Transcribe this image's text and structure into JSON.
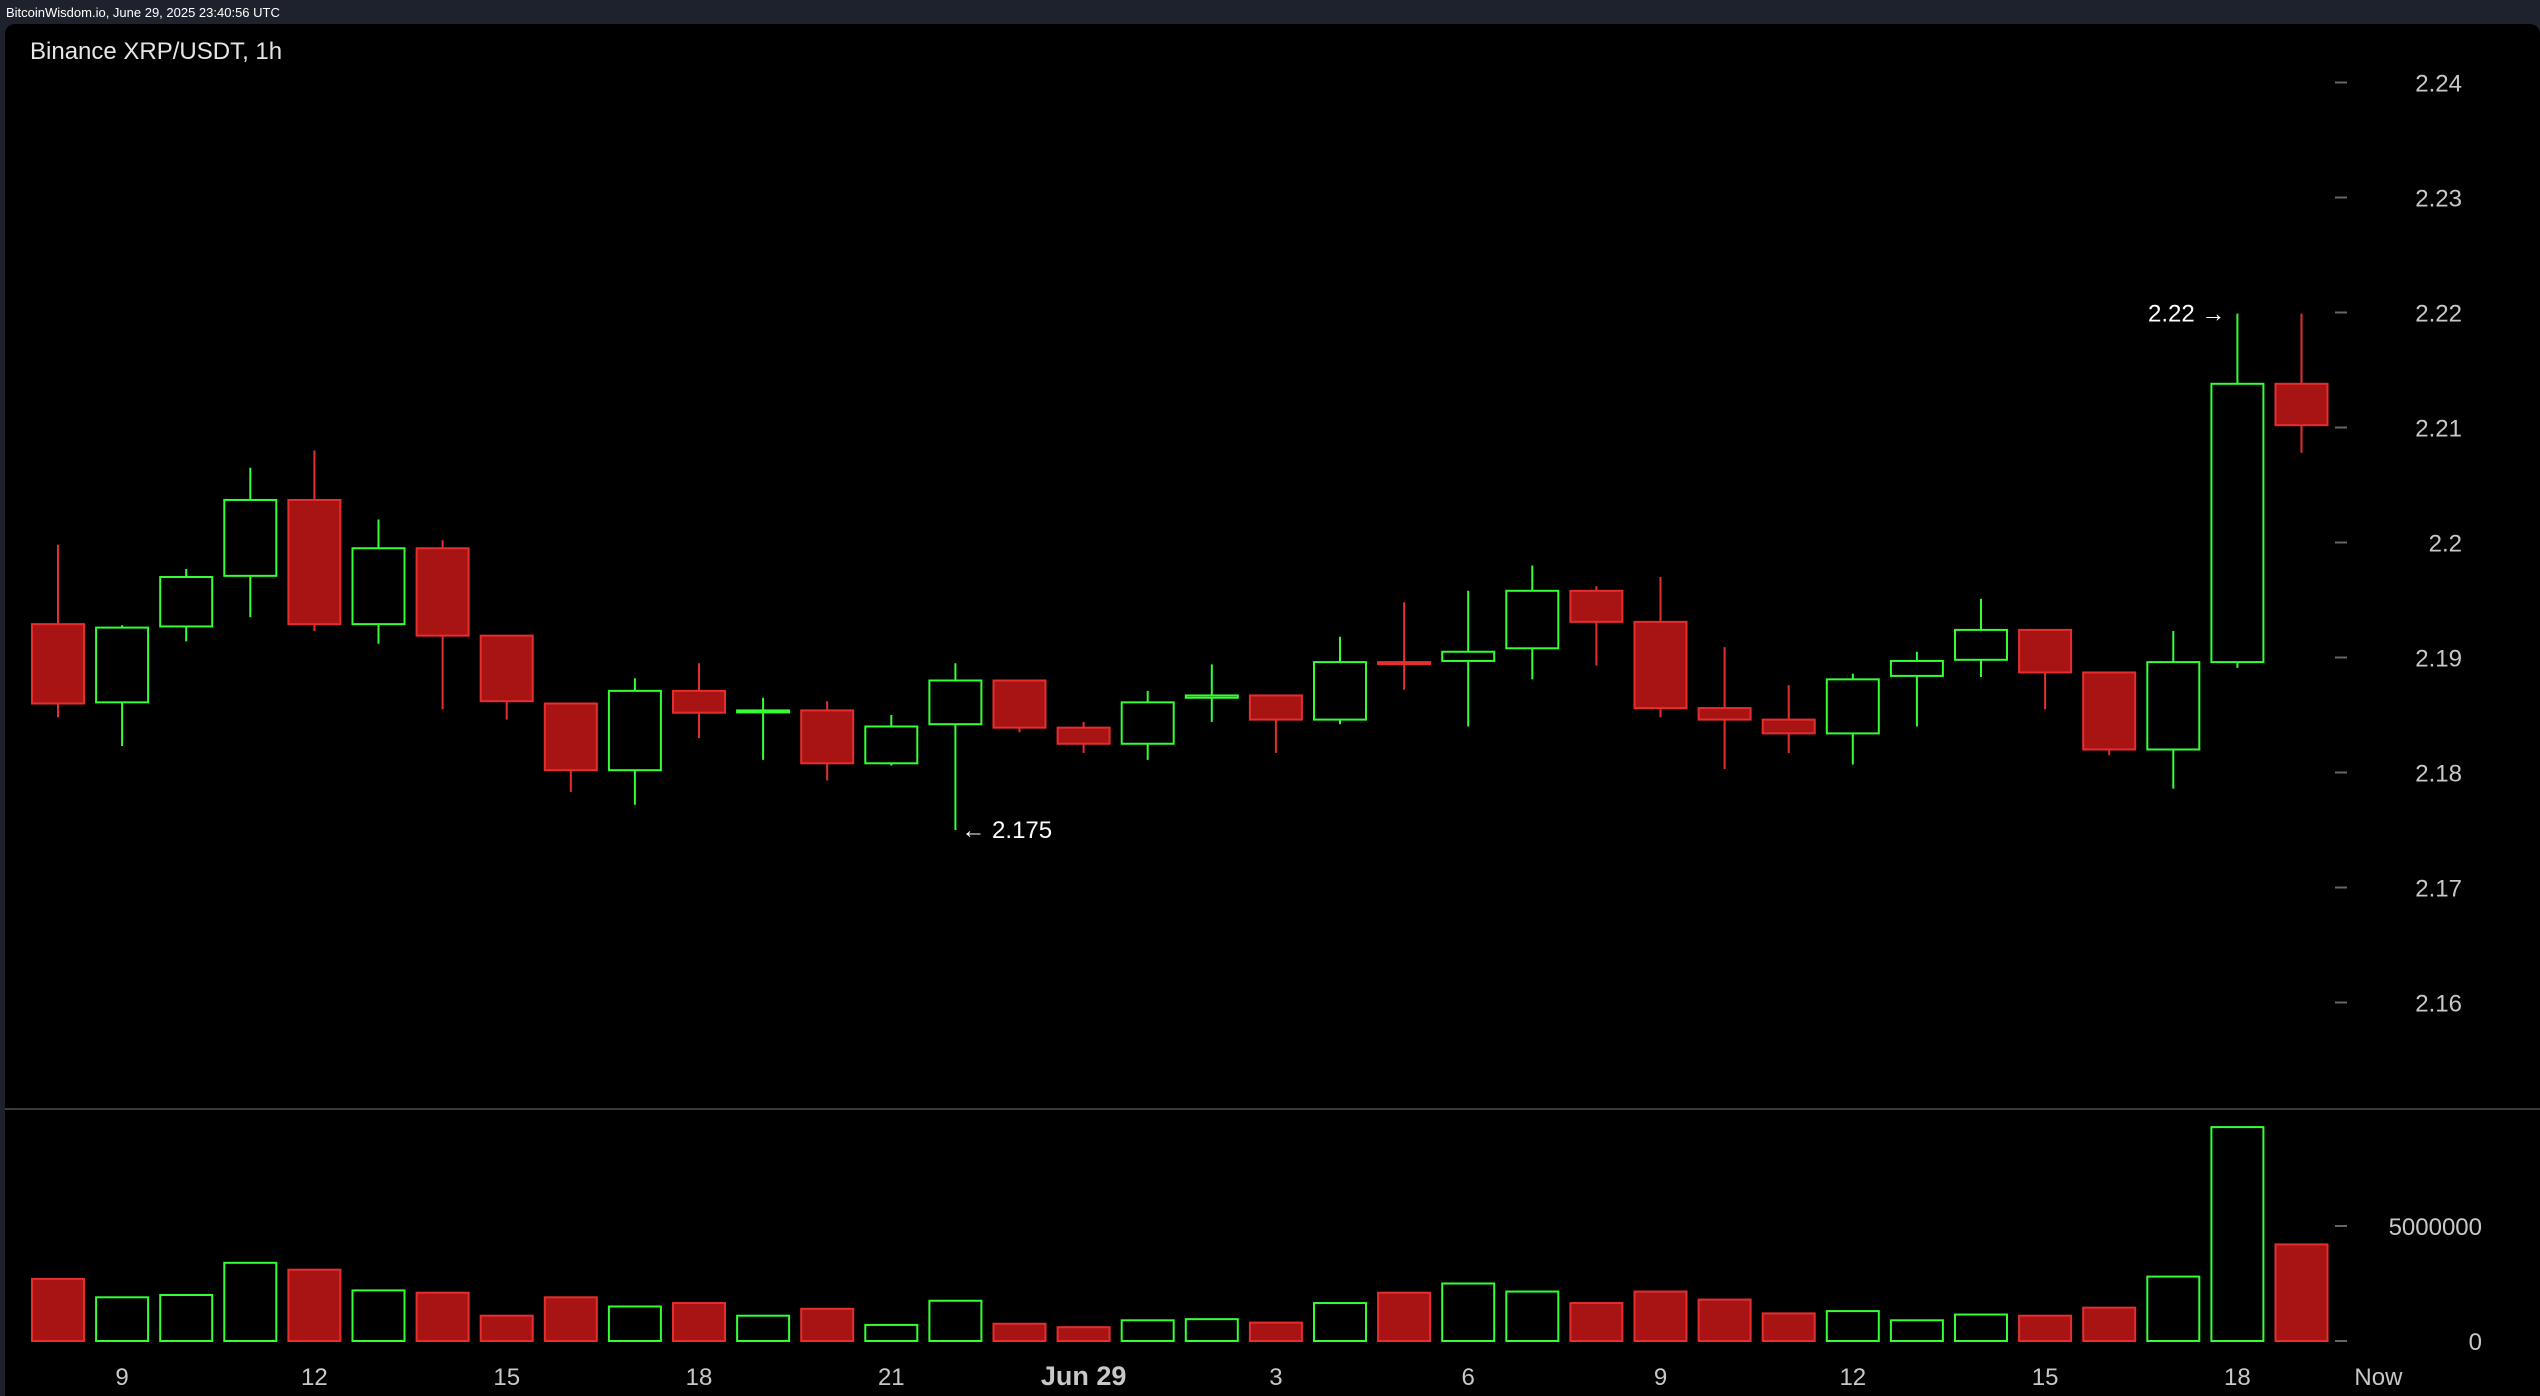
{
  "header": {
    "source_text": "BitcoinWisdom.io, June 29, 2025 23:40:56 UTC"
  },
  "chart_title": "Binance XRP/USDT, 1h",
  "colors": {
    "up": "#33ff33",
    "down": "#e62e2e",
    "down_fill": "#a81414",
    "axis": "#c8c8c8",
    "background": "#000000"
  },
  "chart_data": {
    "type": "candlestick",
    "exchange": "Binance",
    "pair": "XRP/USDT",
    "interval": "1h",
    "x_ticks": [
      {
        "index": 1,
        "label": "9"
      },
      {
        "index": 4,
        "label": "12"
      },
      {
        "index": 7,
        "label": "15"
      },
      {
        "index": 10,
        "label": "18"
      },
      {
        "index": 13,
        "label": "21"
      },
      {
        "index": 16,
        "label": "Jun 29",
        "bold": true
      },
      {
        "index": 19,
        "label": "3"
      },
      {
        "index": 22,
        "label": "6"
      },
      {
        "index": 25,
        "label": "9"
      },
      {
        "index": 28,
        "label": "12"
      },
      {
        "index": 31,
        "label": "15"
      },
      {
        "index": 34,
        "label": "18"
      },
      {
        "index": 36.2,
        "label": "Now"
      }
    ],
    "price_axis": {
      "min": 2.15,
      "max": 2.245,
      "ticks": [
        "2.16",
        "2.17",
        "2.18",
        "2.19",
        "2.2",
        "2.21",
        "2.22",
        "2.23",
        "2.24"
      ]
    },
    "volume_axis": {
      "max": 10000000,
      "ticks": [
        {
          "value": 0,
          "label": "0"
        },
        {
          "value": 5000000,
          "label": "5000000"
        }
      ]
    },
    "candles": [
      {
        "o": 2.1929,
        "h": 2.1998,
        "l": 2.1848,
        "c": 2.186,
        "v": 2700000
      },
      {
        "o": 2.1861,
        "h": 2.1928,
        "l": 2.1823,
        "c": 2.1926,
        "v": 1900000
      },
      {
        "o": 2.1927,
        "h": 2.1977,
        "l": 2.1914,
        "c": 2.197,
        "v": 2000000
      },
      {
        "o": 2.1971,
        "h": 2.2065,
        "l": 2.1935,
        "c": 2.2037,
        "v": 3400000
      },
      {
        "o": 2.2037,
        "h": 2.208,
        "l": 2.1923,
        "c": 2.1929,
        "v": 3100000
      },
      {
        "o": 2.1929,
        "h": 2.202,
        "l": 2.1912,
        "c": 2.1995,
        "v": 2200000
      },
      {
        "o": 2.1995,
        "h": 2.2002,
        "l": 2.1855,
        "c": 2.1919,
        "v": 2100000
      },
      {
        "o": 2.1919,
        "h": 2.1919,
        "l": 2.1846,
        "c": 2.1862,
        "v": 1100000
      },
      {
        "o": 2.186,
        "h": 2.186,
        "l": 2.1783,
        "c": 2.1802,
        "v": 1900000
      },
      {
        "o": 2.1802,
        "h": 2.1882,
        "l": 2.1772,
        "c": 2.1871,
        "v": 1500000
      },
      {
        "o": 2.1871,
        "h": 2.1895,
        "l": 2.183,
        "c": 2.1852,
        "v": 1650000
      },
      {
        "o": 2.1853,
        "h": 2.1865,
        "l": 2.1811,
        "c": 2.1854,
        "v": 1100000
      },
      {
        "o": 2.1854,
        "h": 2.1862,
        "l": 2.1793,
        "c": 2.1808,
        "v": 1400000
      },
      {
        "o": 2.1808,
        "h": 2.185,
        "l": 2.1806,
        "c": 2.184,
        "v": 700000
      },
      {
        "o": 2.1842,
        "h": 2.1895,
        "l": 2.175,
        "c": 2.188,
        "v": 1750000
      },
      {
        "o": 2.188,
        "h": 2.188,
        "l": 2.1835,
        "c": 2.1839,
        "v": 750000
      },
      {
        "o": 2.1839,
        "h": 2.1844,
        "l": 2.1817,
        "c": 2.1825,
        "v": 600000
      },
      {
        "o": 2.1825,
        "h": 2.1871,
        "l": 2.1811,
        "c": 2.1861,
        "v": 900000
      },
      {
        "o": 2.1865,
        "h": 2.1894,
        "l": 2.1844,
        "c": 2.1867,
        "v": 950000
      },
      {
        "o": 2.1867,
        "h": 2.1867,
        "l": 2.1817,
        "c": 2.1846,
        "v": 800000
      },
      {
        "o": 2.1846,
        "h": 2.1918,
        "l": 2.1842,
        "c": 2.1896,
        "v": 1650000
      },
      {
        "o": 2.1896,
        "h": 2.1948,
        "l": 2.1872,
        "c": 2.1895,
        "v": 2100000
      },
      {
        "o": 2.1897,
        "h": 2.1958,
        "l": 2.184,
        "c": 2.1905,
        "v": 2500000
      },
      {
        "o": 2.1908,
        "h": 2.198,
        "l": 2.1881,
        "c": 2.1958,
        "v": 2150000
      },
      {
        "o": 2.1958,
        "h": 2.1962,
        "l": 2.1893,
        "c": 2.1931,
        "v": 1650000
      },
      {
        "o": 2.1931,
        "h": 2.197,
        "l": 2.1848,
        "c": 2.1856,
        "v": 2150000
      },
      {
        "o": 2.1856,
        "h": 2.1909,
        "l": 2.1803,
        "c": 2.1846,
        "v": 1800000
      },
      {
        "o": 2.1846,
        "h": 2.1876,
        "l": 2.1817,
        "c": 2.1834,
        "v": 1200000
      },
      {
        "o": 2.1834,
        "h": 2.1886,
        "l": 2.1807,
        "c": 2.1881,
        "v": 1300000
      },
      {
        "o": 2.1884,
        "h": 2.1905,
        "l": 2.184,
        "c": 2.1897,
        "v": 900000
      },
      {
        "o": 2.1898,
        "h": 2.1951,
        "l": 2.1883,
        "c": 2.1924,
        "v": 1150000
      },
      {
        "o": 2.1924,
        "h": 2.1924,
        "l": 2.1855,
        "c": 2.1887,
        "v": 1100000
      },
      {
        "o": 2.1887,
        "h": 2.1887,
        "l": 2.1815,
        "c": 2.182,
        "v": 1450000
      },
      {
        "o": 2.182,
        "h": 2.1923,
        "l": 2.1786,
        "c": 2.1896,
        "v": 2800000
      },
      {
        "o": 2.1896,
        "h": 2.2199,
        "l": 2.1891,
        "c": 2.2138,
        "v": 9300000
      },
      {
        "o": 2.2138,
        "h": 2.2199,
        "l": 2.2078,
        "c": 2.2102,
        "v": 4200000
      }
    ],
    "annotations": [
      {
        "label": "2.22 →",
        "candle": 34,
        "price": 2.2199,
        "side": "left"
      },
      {
        "label": "← 2.175",
        "candle": 14,
        "price": 2.175,
        "side": "right"
      }
    ]
  }
}
